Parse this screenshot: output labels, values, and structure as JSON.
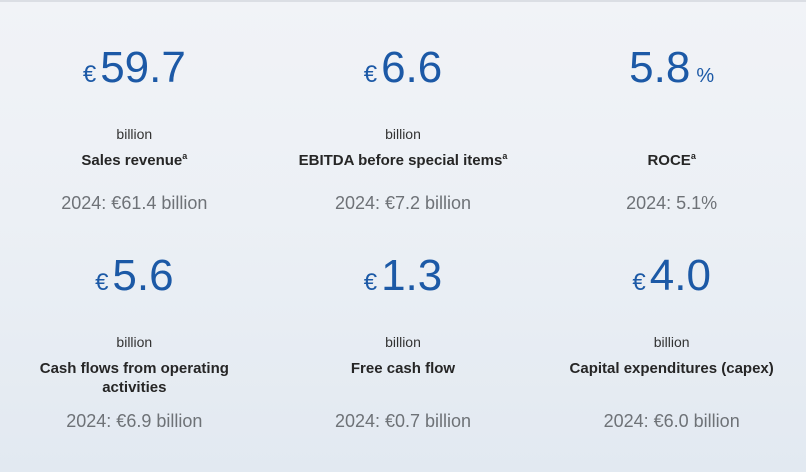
{
  "colors": {
    "accent_blue": "#1c59a6",
    "label_dark": "#262626",
    "unit_dark": "#333333",
    "comparison_gray": "#6e7277",
    "background_top": "#f1f3f7",
    "background_bottom": "#e2e9f1"
  },
  "chart_data": {
    "type": "table",
    "columns": [
      "value",
      "unit",
      "label",
      "prior_year_comparison"
    ],
    "layout": "2 rows x 3 columns of KPI tiles",
    "metrics": [
      {
        "prefix": "€",
        "value": "59.7",
        "suffix": "",
        "unit": "billion",
        "label": "Sales revenue",
        "footnote": "a",
        "comparison": "2024: €61.4 billion"
      },
      {
        "prefix": "€",
        "value": "6.6",
        "suffix": "",
        "unit": "billion",
        "label": "EBITDA before special items",
        "footnote": "a",
        "comparison": "2024: €7.2 billion"
      },
      {
        "prefix": "",
        "value": "5.8",
        "suffix": "%",
        "unit": "",
        "label": "ROCE",
        "footnote": "a",
        "comparison": "2024: 5.1%"
      },
      {
        "prefix": "€",
        "value": "5.6",
        "suffix": "",
        "unit": "billion",
        "label": "Cash flows from operating activities",
        "footnote": "",
        "comparison": "2024: €6.9 billion"
      },
      {
        "prefix": "€",
        "value": "1.3",
        "suffix": "",
        "unit": "billion",
        "label": "Free cash flow",
        "footnote": "",
        "comparison": "2024: €0.7 billion"
      },
      {
        "prefix": "€",
        "value": "4.0",
        "suffix": "",
        "unit": "billion",
        "label": "Capital expenditures (capex)",
        "footnote": "",
        "comparison": "2024: €6.0 billion"
      }
    ]
  }
}
